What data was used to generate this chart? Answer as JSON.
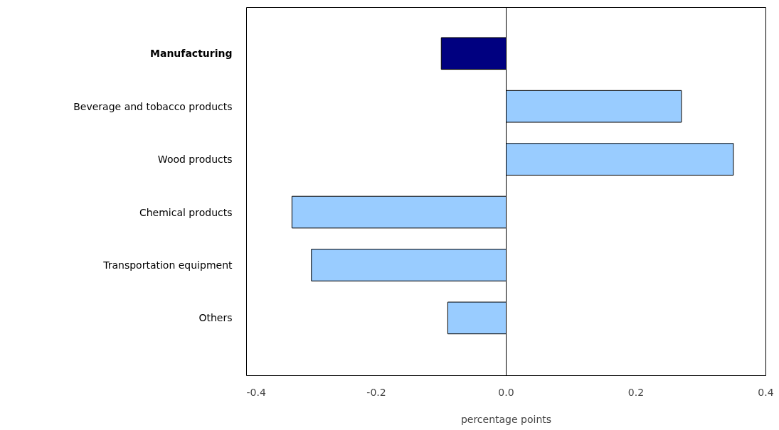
{
  "chart_data": {
    "type": "bar",
    "orientation": "horizontal",
    "xlabel": "percentage points",
    "categories": [
      "Manufacturing",
      "Beverage and tobacco products",
      "Wood products",
      "Chemical products",
      "Transportation equipment",
      "Others"
    ],
    "values": [
      -0.1,
      0.27,
      0.35,
      -0.33,
      -0.3,
      -0.09
    ],
    "colors": [
      "#000080",
      "#99ccff",
      "#99ccff",
      "#99ccff",
      "#99ccff",
      "#99ccff"
    ],
    "xlim": [
      -0.4,
      0.4
    ],
    "xticks": [
      -0.4,
      -0.2,
      {
        "value": 0,
        "label": "0.0"
      },
      0.2,
      0.4
    ],
    "ref_lines": [
      {
        "axis": "x",
        "value": 0,
        "color": "#000000"
      }
    ],
    "grid": false
  }
}
